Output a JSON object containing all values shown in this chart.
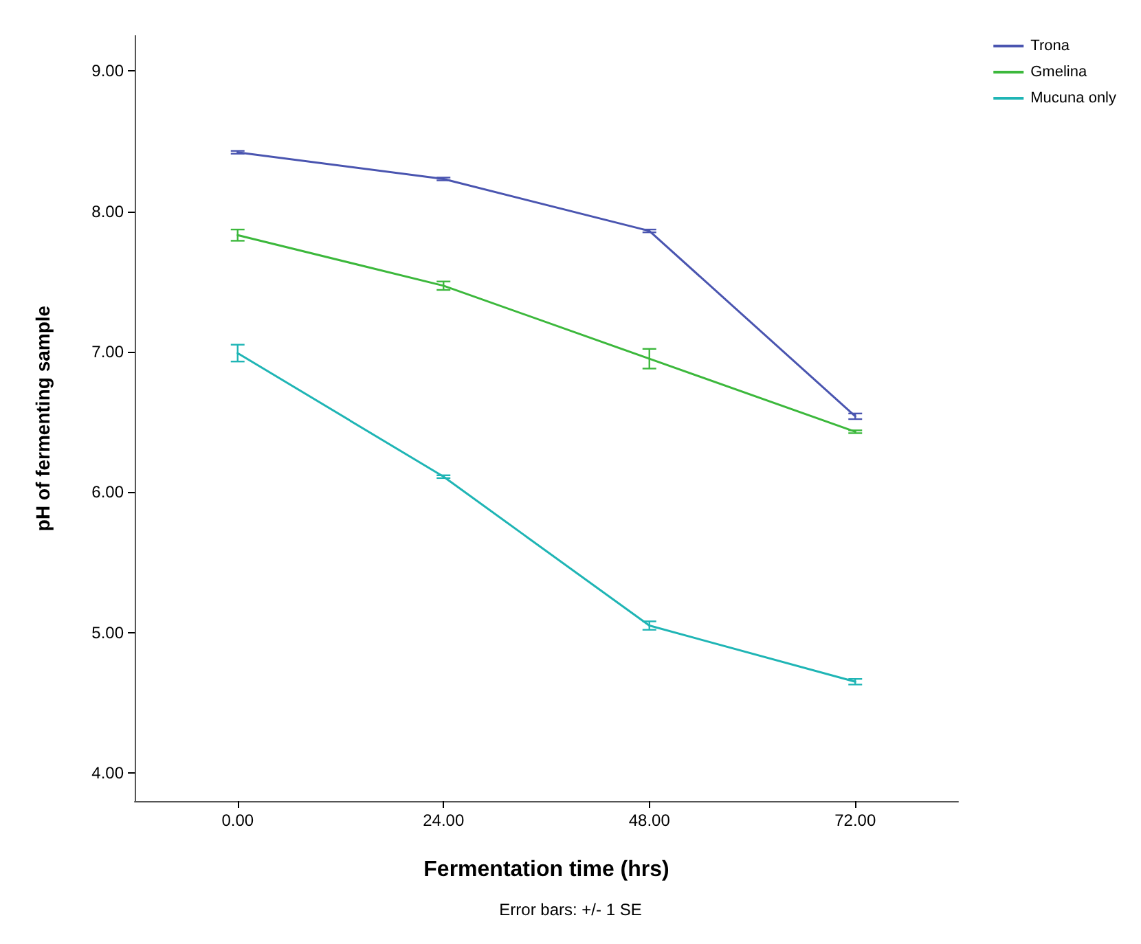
{
  "chart_data": {
    "type": "line",
    "xlabel": "Fermentation time (hrs)",
    "ylabel": "pH of fermenting sample",
    "categories": [
      "0.00",
      "24.00",
      "48.00",
      "72.00"
    ],
    "series": [
      {
        "name": "Trona",
        "color": "#4a55b0",
        "values": [
          8.42,
          8.23,
          7.86,
          6.54
        ],
        "errors": [
          0.01,
          0.01,
          0.01,
          0.02
        ]
      },
      {
        "name": "Gmelina",
        "color": "#3cb83c",
        "values": [
          7.83,
          7.47,
          6.95,
          6.43
        ],
        "errors": [
          0.04,
          0.03,
          0.07,
          0.01
        ]
      },
      {
        "name": "Mucuna only",
        "color": "#1fb5b5",
        "values": [
          6.99,
          6.11,
          5.05,
          4.65
        ],
        "errors": [
          0.06,
          0.01,
          0.03,
          0.02
        ]
      }
    ],
    "ylim": [
      3.8,
      9.25
    ],
    "yticks": [
      {
        "value": 4,
        "label": "4.00"
      },
      {
        "value": 5,
        "label": "5.00"
      },
      {
        "value": 6,
        "label": "6.00"
      },
      {
        "value": 7,
        "label": "7.00"
      },
      {
        "value": 8,
        "label": "8.00"
      },
      {
        "value": 9,
        "label": "9.00"
      }
    ],
    "legend": "top right",
    "grid": false,
    "marker": "none",
    "line_style": "solid",
    "annotations": [
      "Error bars: +/- 1 SE"
    ]
  }
}
